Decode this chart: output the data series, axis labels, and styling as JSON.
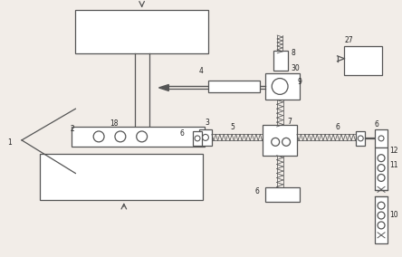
{
  "bg_color": "#f2ede8",
  "line_color": "#555555",
  "lw": 0.9,
  "fig_w": 4.44,
  "fig_h": 2.84
}
